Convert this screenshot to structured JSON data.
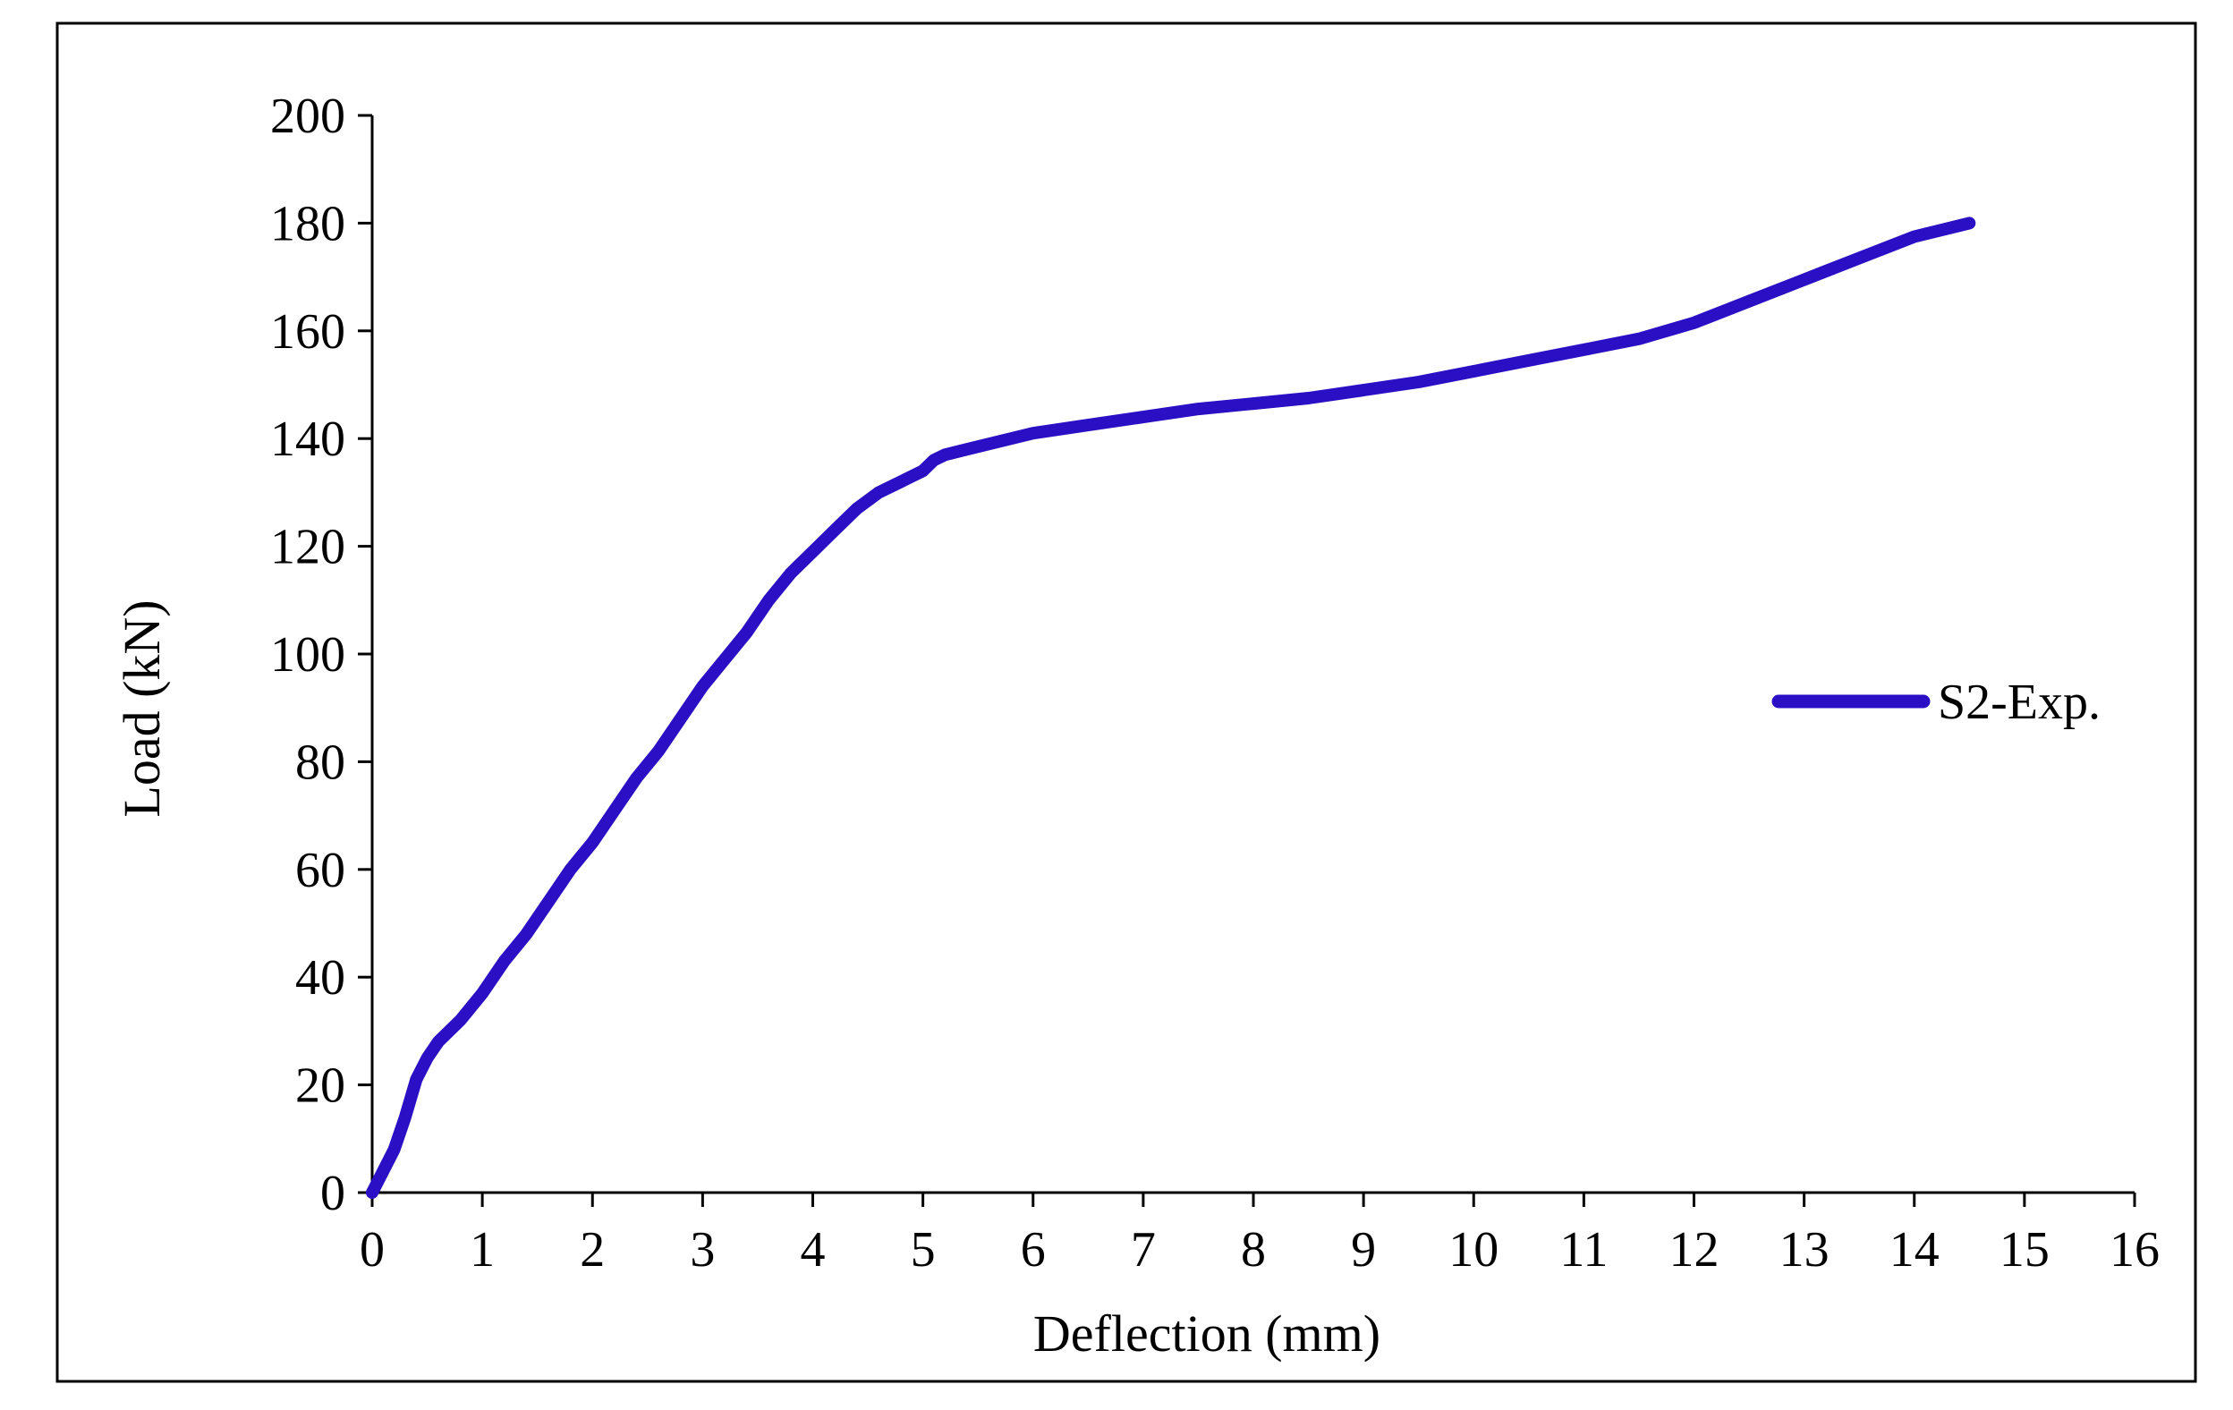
{
  "chart_data": {
    "type": "line",
    "title": "",
    "xlabel": "Deflection (mm)",
    "ylabel": "Load (kN)",
    "xlim": [
      0,
      16
    ],
    "ylim": [
      0,
      200
    ],
    "xticks": [
      0,
      1,
      2,
      3,
      4,
      5,
      6,
      7,
      8,
      9,
      10,
      11,
      12,
      13,
      14,
      15,
      16
    ],
    "yticks": [
      0,
      20,
      40,
      60,
      80,
      100,
      120,
      140,
      160,
      180,
      200
    ],
    "grid": false,
    "legend_position": "right",
    "series": [
      {
        "name": "S2-Exp.",
        "color": "#2A0FC4",
        "x": [
          0,
          0.1,
          0.2,
          0.3,
          0.4,
          0.5,
          0.6,
          0.8,
          1.0,
          1.2,
          1.4,
          1.6,
          1.8,
          2.0,
          2.2,
          2.4,
          2.6,
          2.8,
          3.0,
          3.2,
          3.4,
          3.6,
          3.8,
          4.0,
          4.2,
          4.4,
          4.6,
          4.8,
          5.0,
          5.1,
          5.2,
          5.4,
          5.6,
          6.0,
          6.5,
          7.0,
          7.5,
          8.0,
          8.5,
          9.0,
          9.5,
          10.0,
          10.5,
          11.0,
          11.5,
          12.0,
          12.5,
          13.0,
          13.5,
          14.0,
          14.5
        ],
        "y": [
          0,
          4,
          8,
          14,
          21,
          25,
          28,
          32,
          37,
          43,
          48,
          54,
          60,
          65,
          71,
          77,
          82,
          88,
          94,
          99,
          104,
          110,
          115,
          119,
          123,
          127,
          130,
          132,
          134,
          136,
          137,
          138,
          139,
          141,
          142.5,
          144,
          145.5,
          146.5,
          147.5,
          149,
          150.5,
          152.5,
          154.5,
          156.5,
          158.5,
          161.5,
          165.5,
          169.5,
          173.5,
          177.5,
          180
        ]
      }
    ]
  }
}
